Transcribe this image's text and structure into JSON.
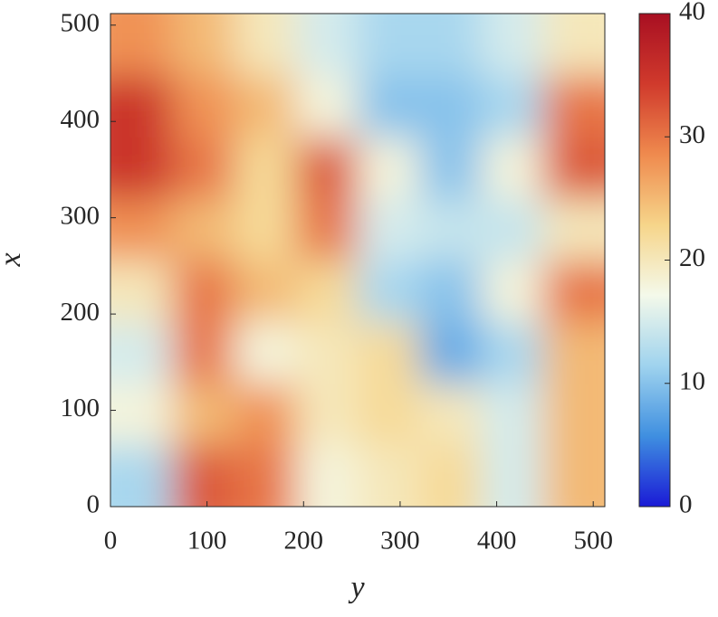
{
  "chart_data": {
    "type": "heatmap",
    "xlabel": "y",
    "ylabel": "x",
    "xlim": [
      0,
      512
    ],
    "ylim": [
      0,
      512
    ],
    "xticks": [
      0,
      100,
      200,
      300,
      400,
      500
    ],
    "yticks": [
      0,
      100,
      200,
      300,
      400,
      500
    ],
    "clim": [
      0,
      40
    ],
    "cticks": [
      0,
      10,
      20,
      30,
      40
    ],
    "colormap": [
      "#1a1ad6",
      "#3f8fe0",
      "#9fd3ee",
      "#f4f9ea",
      "#f6d58a",
      "#ef8a4e",
      "#d03a2c",
      "#a80f22"
    ],
    "z": [
      [
        12,
        32,
        30,
        18,
        20,
        22,
        15,
        25
      ],
      [
        18,
        25,
        28,
        20,
        22,
        20,
        15,
        25
      ],
      [
        15,
        30,
        18,
        20,
        22,
        8,
        12,
        25
      ],
      [
        20,
        30,
        25,
        22,
        12,
        10,
        18,
        30
      ],
      [
        28,
        25,
        22,
        30,
        15,
        14,
        14,
        20
      ],
      [
        35,
        30,
        22,
        32,
        18,
        10,
        18,
        32
      ],
      [
        35,
        28,
        25,
        18,
        10,
        10,
        12,
        30
      ],
      [
        28,
        25,
        20,
        15,
        12,
        12,
        15,
        20
      ]
    ]
  }
}
